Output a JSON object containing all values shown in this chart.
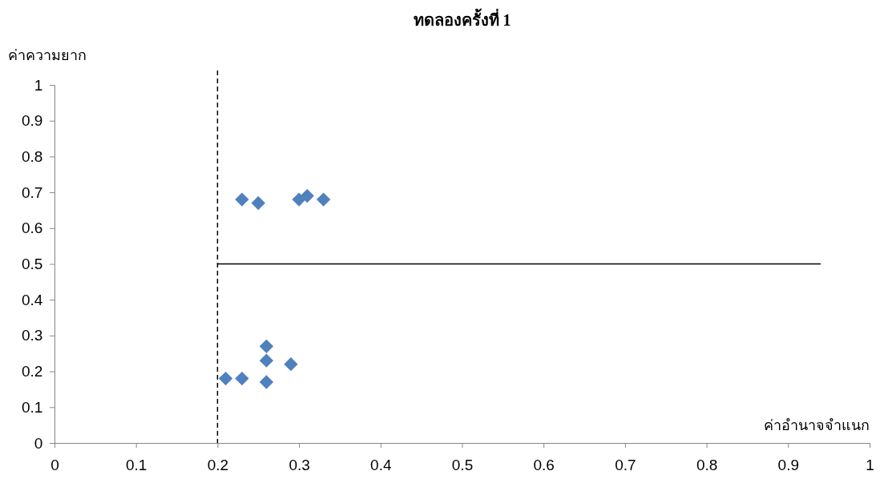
{
  "chart_data": {
    "type": "scatter",
    "title": "ทดลองครั้งที่ 1",
    "xlabel": "ค่าอำนาจจำแนก",
    "ylabel": "ค่าความยาก",
    "xlim": [
      0,
      1
    ],
    "ylim": [
      0,
      1
    ],
    "xticks": [
      0,
      0.1,
      0.2,
      0.3,
      0.4,
      0.5,
      0.6,
      0.7,
      0.8,
      0.9,
      1
    ],
    "yticks": [
      0,
      0.1,
      0.2,
      0.3,
      0.4,
      0.5,
      0.6,
      0.7,
      0.8,
      0.9,
      1
    ],
    "grid": false,
    "marker": "diamond",
    "series": [
      {
        "color": "#4f81bd",
        "x": [
          0.23,
          0.25,
          0.3,
          0.31,
          0.33,
          0.26,
          0.26,
          0.29,
          0.21,
          0.23,
          0.26
        ],
        "values": [
          0.68,
          0.67,
          0.68,
          0.69,
          0.68,
          0.27,
          0.23,
          0.22,
          0.18,
          0.18,
          0.17
        ]
      },
      {
        "type": "line",
        "color": "#000000",
        "marker": "none",
        "x": [
          0.2,
          0.94
        ],
        "values": [
          0.5,
          0.5
        ]
      }
    ],
    "ref_lines": [
      {
        "axis": "x",
        "value": 0.2,
        "label": null,
        "color": "#000000",
        "line_style": "dashed"
      }
    ]
  }
}
